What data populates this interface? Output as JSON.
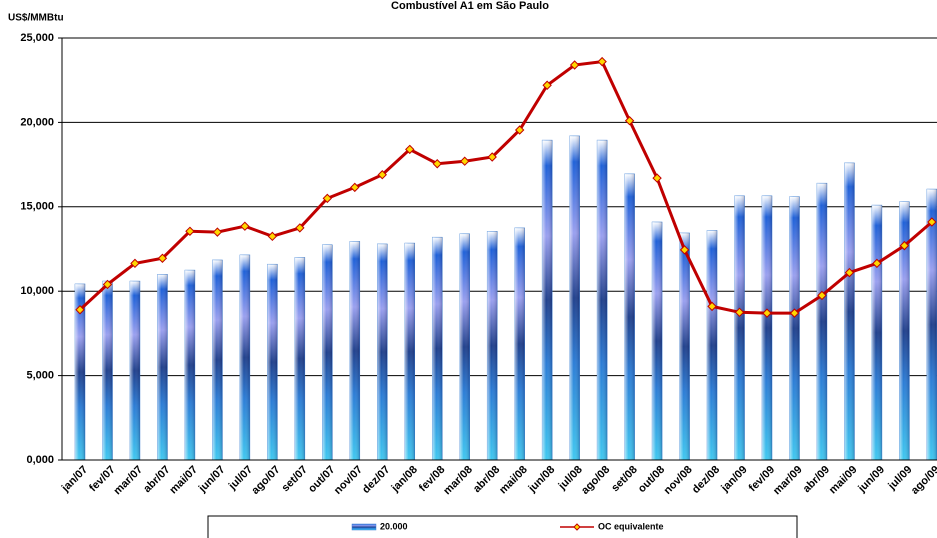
{
  "chart_data": {
    "type": "bar-line",
    "title": "Combustível A1 em São Paulo",
    "y_label": "US$/MMBtu",
    "categories": [
      "jan/07",
      "fev/07",
      "mar/07",
      "abr/07",
      "mai/07",
      "jun/07",
      "jul/07",
      "ago/07",
      "set/07",
      "out/07",
      "nov/07",
      "dez/07",
      "jan/08",
      "fev/08",
      "mar/08",
      "abr/08",
      "mai/08",
      "jun/08",
      "jul/08",
      "ago/08",
      "set/08",
      "out/08",
      "nov/08",
      "dez/08",
      "jan/09",
      "fev/09",
      "mar/09",
      "abr/09",
      "mai/09",
      "jun/09",
      "jul/09",
      "ago/09"
    ],
    "series": [
      {
        "name": "20.000",
        "kind": "bar",
        "color": "#3a7fd5",
        "values": [
          10430,
          10600,
          10600,
          11000,
          11250,
          11850,
          12150,
          11600,
          12000,
          12750,
          12950,
          12800,
          12850,
          13200,
          13400,
          13550,
          13750,
          18950,
          19200,
          18950,
          16950,
          14100,
          13450,
          13600,
          15650,
          15650,
          15600,
          16400,
          17600,
          15100,
          15300,
          16050
        ]
      },
      {
        "name": "OC equivalente",
        "kind": "line",
        "color": "#c00000",
        "marker_color": "#ffd700",
        "values": [
          8900,
          10400,
          11650,
          11950,
          13550,
          13500,
          13850,
          13250,
          13750,
          15500,
          16150,
          16900,
          18400,
          17550,
          17700,
          17950,
          19550,
          22200,
          23400,
          23600,
          20100,
          16700,
          12450,
          9100,
          8750,
          8700,
          8700,
          9750,
          11100,
          11650,
          12700,
          14100
        ]
      }
    ],
    "ylim": [
      0,
      25000
    ],
    "yticks": [
      {
        "value": 0,
        "label": "0,000"
      },
      {
        "value": 5000,
        "label": "5,000"
      },
      {
        "value": 10000,
        "label": "10,000"
      },
      {
        "value": 15000,
        "label": "15,000"
      },
      {
        "value": 20000,
        "label": "20,000"
      },
      {
        "value": 25000,
        "label": "25,000"
      }
    ],
    "grid": true
  }
}
